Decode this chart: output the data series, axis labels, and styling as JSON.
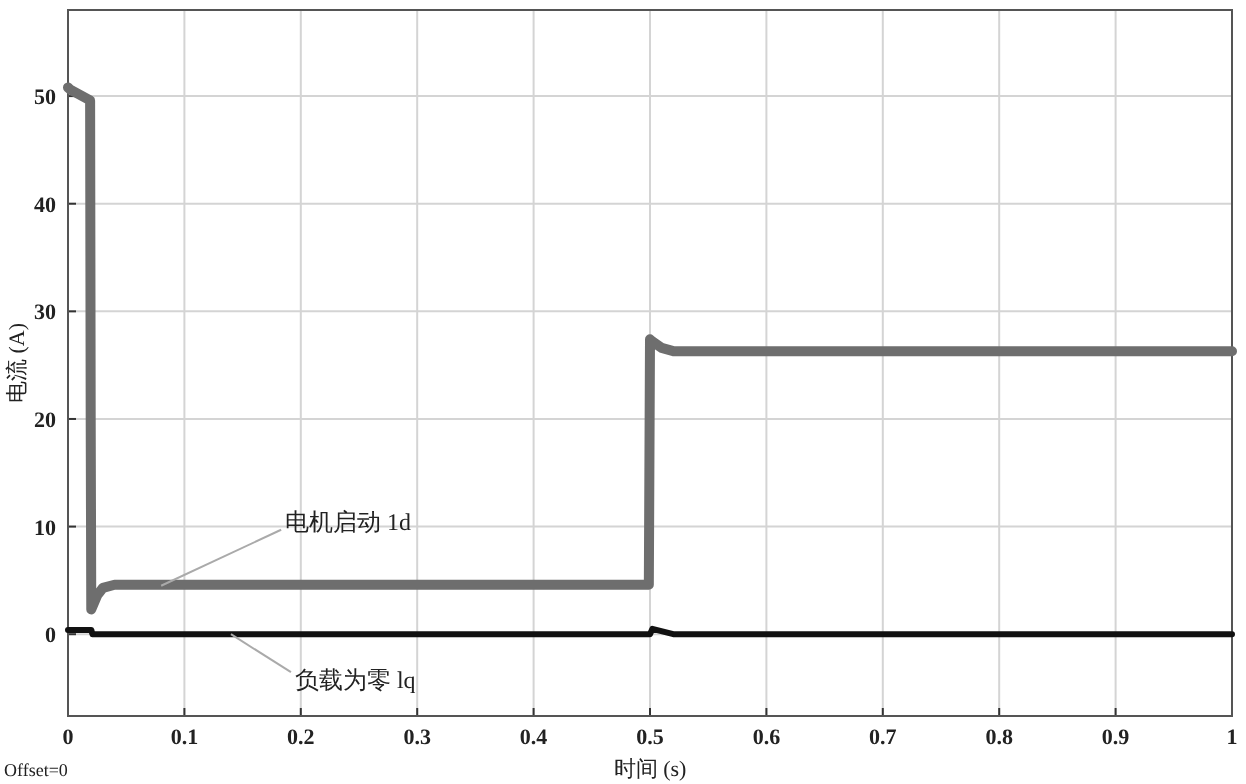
{
  "chart_data": {
    "type": "line",
    "xlabel": "时间 (s)",
    "ylabel": "电流 (A)",
    "xlim": [
      0,
      1
    ],
    "ylim": [
      -7.6,
      58
    ],
    "xticks": [
      0,
      0.1,
      0.2,
      0.3,
      0.4,
      0.5,
      0.6,
      0.7,
      0.8,
      0.9,
      1
    ],
    "yticks": [
      0,
      10,
      20,
      30,
      40,
      50
    ],
    "grid": true,
    "line_style": "solid",
    "series": [
      {
        "color": "#6e6e6e",
        "x": [
          0,
          0.002,
          0.019,
          0.0195,
          0.02,
          0.025,
          0.03,
          0.04,
          0.1,
          0.2,
          0.3,
          0.4,
          0.499,
          0.5,
          0.502,
          0.51,
          0.52,
          0.6,
          0.7,
          0.8,
          0.9,
          1
        ],
        "values": [
          50.8,
          50.6,
          49.6,
          20,
          2.3,
          3.6,
          4.3,
          4.6,
          4.6,
          4.6,
          4.6,
          4.6,
          4.6,
          27.4,
          27.2,
          26.6,
          26.3,
          26.3,
          26.3,
          26.3,
          26.3,
          26.3
        ]
      },
      {
        "color": "#111111",
        "x": [
          0,
          0.02,
          0.021,
          0.5,
          0.502,
          0.52,
          1
        ],
        "values": [
          0.4,
          0.4,
          0,
          0,
          0.5,
          0,
          0
        ]
      }
    ],
    "annotations": [
      {
        "text": "电机启动 1d",
        "x": 0.08,
        "y": 4.5
      },
      {
        "text": "负载为零 lq",
        "x": 0.14,
        "y": 0
      },
      "Offset=0"
    ]
  }
}
